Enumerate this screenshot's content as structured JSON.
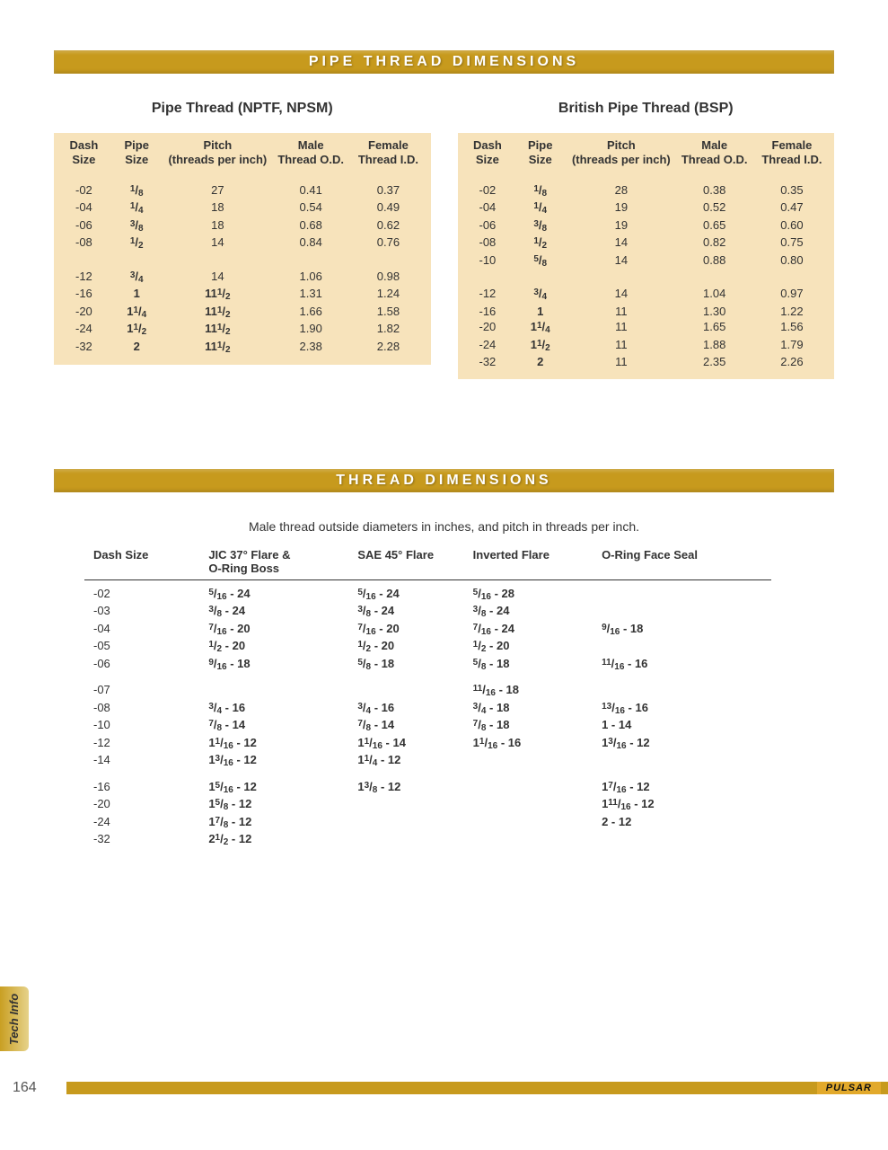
{
  "page_number": "164",
  "brand": "PULSAR",
  "side_tab": "Tech Info",
  "section1": {
    "title": "PIPE THREAD DIMENSIONS",
    "left": {
      "title": "Pipe Thread (NPTF, NPSM)",
      "headers": {
        "dash": "Dash\nSize",
        "pipe": "Pipe\nSize",
        "pitch": "Pitch\n(threads per inch)",
        "male": "Male\nThread O.D.",
        "female": "Female\nThread I.D."
      },
      "groups": [
        [
          {
            "dash": "-02",
            "pipe": {
              "w": "",
              "n": "1",
              "d": "8"
            },
            "pitch": "27",
            "male": "0.41",
            "female": "0.37"
          },
          {
            "dash": "-04",
            "pipe": {
              "w": "",
              "n": "1",
              "d": "4"
            },
            "pitch": "18",
            "male": "0.54",
            "female": "0.49"
          },
          {
            "dash": "-06",
            "pipe": {
              "w": "",
              "n": "3",
              "d": "8"
            },
            "pitch": "18",
            "male": "0.68",
            "female": "0.62"
          },
          {
            "dash": "-08",
            "pipe": {
              "w": "",
              "n": "1",
              "d": "2"
            },
            "pitch": "14",
            "male": "0.84",
            "female": "0.76"
          }
        ],
        [
          {
            "dash": "-12",
            "pipe": {
              "w": "",
              "n": "3",
              "d": "4"
            },
            "pitch": "14",
            "male": "1.06",
            "female": "0.98"
          },
          {
            "dash": "-16",
            "pipe": {
              "w": "1",
              "n": "",
              "d": ""
            },
            "pitch": {
              "w": "11",
              "n": "1",
              "d": "2"
            },
            "male": "1.31",
            "female": "1.24"
          },
          {
            "dash": "-20",
            "pipe": {
              "w": "1",
              "n": "1",
              "d": "4"
            },
            "pitch": {
              "w": "11",
              "n": "1",
              "d": "2"
            },
            "male": "1.66",
            "female": "1.58"
          },
          {
            "dash": "-24",
            "pipe": {
              "w": "1",
              "n": "1",
              "d": "2"
            },
            "pitch": {
              "w": "11",
              "n": "1",
              "d": "2"
            },
            "male": "1.90",
            "female": "1.82"
          },
          {
            "dash": "-32",
            "pipe": {
              "w": "2",
              "n": "",
              "d": ""
            },
            "pitch": {
              "w": "11",
              "n": "1",
              "d": "2"
            },
            "male": "2.38",
            "female": "2.28"
          }
        ]
      ]
    },
    "right": {
      "title": "British Pipe Thread (BSP)",
      "headers": {
        "dash": "Dash\nSize",
        "pipe": "Pipe\nSize",
        "pitch": "Pitch\n(threads per inch)",
        "male": "Male\nThread O.D.",
        "female": "Female\nThread I.D."
      },
      "groups": [
        [
          {
            "dash": "-02",
            "pipe": {
              "w": "",
              "n": "1",
              "d": "8"
            },
            "pitch": "28",
            "male": "0.38",
            "female": "0.35"
          },
          {
            "dash": "-04",
            "pipe": {
              "w": "",
              "n": "1",
              "d": "4"
            },
            "pitch": "19",
            "male": "0.52",
            "female": "0.47"
          },
          {
            "dash": "-06",
            "pipe": {
              "w": "",
              "n": "3",
              "d": "8"
            },
            "pitch": "19",
            "male": "0.65",
            "female": "0.60"
          },
          {
            "dash": "-08",
            "pipe": {
              "w": "",
              "n": "1",
              "d": "2"
            },
            "pitch": "14",
            "male": "0.82",
            "female": "0.75"
          },
          {
            "dash": "-10",
            "pipe": {
              "w": "",
              "n": "5",
              "d": "8"
            },
            "pitch": "14",
            "male": "0.88",
            "female": "0.80"
          }
        ],
        [
          {
            "dash": "-12",
            "pipe": {
              "w": "",
              "n": "3",
              "d": "4"
            },
            "pitch": "14",
            "male": "1.04",
            "female": "0.97"
          },
          {
            "dash": "-16",
            "pipe": {
              "w": "1",
              "n": "",
              "d": ""
            },
            "pitch": "11",
            "male": "1.30",
            "female": "1.22"
          },
          {
            "dash": "-20",
            "pipe": {
              "w": "1",
              "n": "1",
              "d": "4"
            },
            "pitch": "11",
            "male": "1.65",
            "female": "1.56"
          },
          {
            "dash": "-24",
            "pipe": {
              "w": "1",
              "n": "1",
              "d": "2"
            },
            "pitch": "11",
            "male": "1.88",
            "female": "1.79"
          },
          {
            "dash": "-32",
            "pipe": {
              "w": "2",
              "n": "",
              "d": ""
            },
            "pitch": "11",
            "male": "2.35",
            "female": "2.26"
          }
        ]
      ]
    }
  },
  "section2": {
    "title": "THREAD DIMENSIONS",
    "subtitle": "Male thread outside diameters in inches, and pitch in threads per inch.",
    "headers": {
      "dash": "Dash Size",
      "jic": "JIC 37° Flare &\nO-Ring Boss",
      "sae": "SAE 45° Flare",
      "inv": "Inverted Flare",
      "or": "O-Ring Face Seal"
    },
    "groups": [
      [
        {
          "dash": "-02",
          "jic": {
            "w": "",
            "n": "5",
            "d": "16",
            "p": "24"
          },
          "sae": {
            "w": "",
            "n": "5",
            "d": "16",
            "p": "24"
          },
          "inv": {
            "w": "",
            "n": "5",
            "d": "16",
            "p": "28"
          },
          "or": null
        },
        {
          "dash": "-03",
          "jic": {
            "w": "",
            "n": "3",
            "d": "8",
            "p": "24"
          },
          "sae": {
            "w": "",
            "n": "3",
            "d": "8",
            "p": "24"
          },
          "inv": {
            "w": "",
            "n": "3",
            "d": "8",
            "p": "24"
          },
          "or": null
        },
        {
          "dash": "-04",
          "jic": {
            "w": "",
            "n": "7",
            "d": "16",
            "p": "20"
          },
          "sae": {
            "w": "",
            "n": "7",
            "d": "16",
            "p": "20"
          },
          "inv": {
            "w": "",
            "n": "7",
            "d": "16",
            "p": "24"
          },
          "or": {
            "w": "",
            "n": "9",
            "d": "16",
            "p": "18"
          }
        },
        {
          "dash": "-05",
          "jic": {
            "w": "",
            "n": "1",
            "d": "2",
            "p": "20"
          },
          "sae": {
            "w": "",
            "n": "1",
            "d": "2",
            "p": "20"
          },
          "inv": {
            "w": "",
            "n": "1",
            "d": "2",
            "p": "20"
          },
          "or": null
        },
        {
          "dash": "-06",
          "jic": {
            "w": "",
            "n": "9",
            "d": "16",
            "p": "18"
          },
          "sae": {
            "w": "",
            "n": "5",
            "d": "8",
            "p": "18"
          },
          "inv": {
            "w": "",
            "n": "5",
            "d": "8",
            "p": "18"
          },
          "or": {
            "w": "",
            "n": "11",
            "d": "16",
            "p": "16"
          }
        }
      ],
      [
        {
          "dash": "-07",
          "jic": null,
          "sae": null,
          "inv": {
            "w": "",
            "n": "11",
            "d": "16",
            "p": "18"
          },
          "or": null
        },
        {
          "dash": "-08",
          "jic": {
            "w": "",
            "n": "3",
            "d": "4",
            "p": "16"
          },
          "sae": {
            "w": "",
            "n": "3",
            "d": "4",
            "p": "16"
          },
          "inv": {
            "w": "",
            "n": "3",
            "d": "4",
            "p": "18"
          },
          "or": {
            "w": "",
            "n": "13",
            "d": "16",
            "p": "16"
          }
        },
        {
          "dash": "-10",
          "jic": {
            "w": "",
            "n": "7",
            "d": "8",
            "p": "14"
          },
          "sae": {
            "w": "",
            "n": "7",
            "d": "8",
            "p": "14"
          },
          "inv": {
            "w": "",
            "n": "7",
            "d": "8",
            "p": "18"
          },
          "or": {
            "w": "1",
            "n": "",
            "d": "",
            "p": "14"
          }
        },
        {
          "dash": "-12",
          "jic": {
            "w": "1",
            "n": "1",
            "d": "16",
            "p": "12"
          },
          "sae": {
            "w": "1",
            "n": "1",
            "d": "16",
            "p": "14"
          },
          "inv": {
            "w": "1",
            "n": "1",
            "d": "16",
            "p": "16"
          },
          "or": {
            "w": "1",
            "n": "3",
            "d": "16",
            "p": "12"
          }
        },
        {
          "dash": "-14",
          "jic": {
            "w": "1",
            "n": "3",
            "d": "16",
            "p": "12"
          },
          "sae": {
            "w": "1",
            "n": "1",
            "d": "4",
            "p": "12"
          },
          "inv": null,
          "or": null
        }
      ],
      [
        {
          "dash": "-16",
          "jic": {
            "w": "1",
            "n": "5",
            "d": "16",
            "p": "12"
          },
          "sae": {
            "w": "1",
            "n": "3",
            "d": "8",
            "p": "12"
          },
          "inv": null,
          "or": {
            "w": "1",
            "n": "7",
            "d": "16",
            "p": "12"
          }
        },
        {
          "dash": "-20",
          "jic": {
            "w": "1",
            "n": "5",
            "d": "8",
            "p": "12"
          },
          "sae": null,
          "inv": null,
          "or": {
            "w": "1",
            "n": "11",
            "d": "16",
            "p": "12"
          }
        },
        {
          "dash": "-24",
          "jic": {
            "w": "1",
            "n": "7",
            "d": "8",
            "p": "12"
          },
          "sae": null,
          "inv": null,
          "or": {
            "w": "2",
            "n": "",
            "d": "",
            "p": "12"
          }
        },
        {
          "dash": "-32",
          "jic": {
            "w": "2",
            "n": "1",
            "d": "2",
            "p": "12"
          },
          "sae": null,
          "inv": null,
          "or": null
        }
      ]
    ]
  },
  "colors": {
    "bar": "#c79a1d",
    "table_bg": "#f7e3bb",
    "text": "#333333"
  }
}
